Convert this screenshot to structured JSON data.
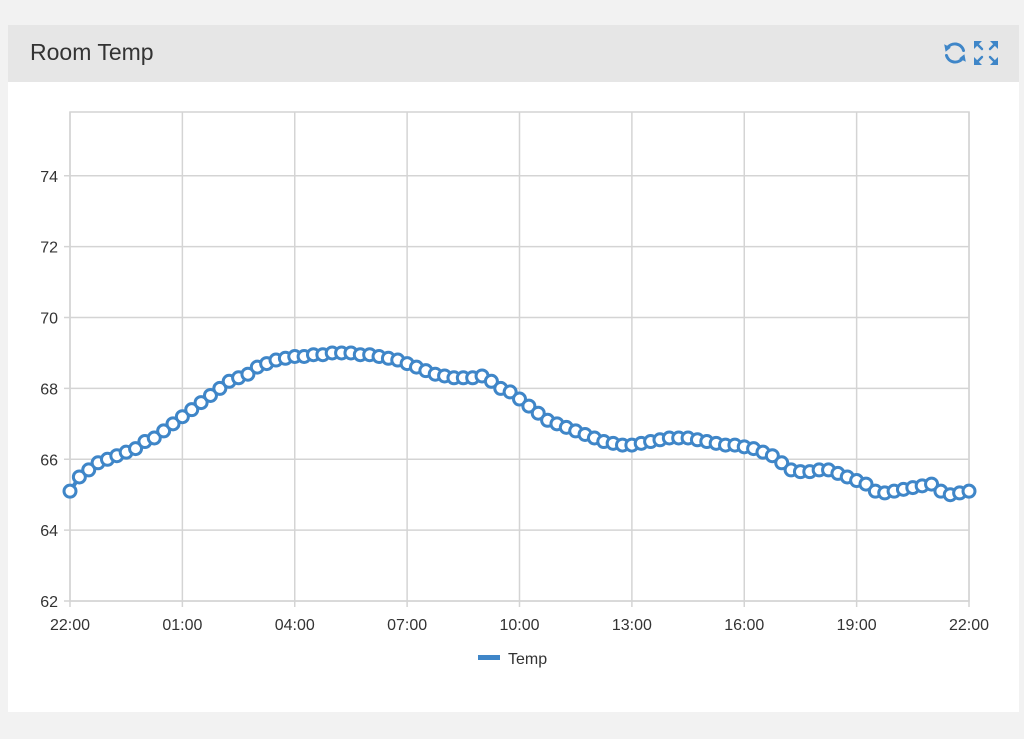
{
  "panel": {
    "title": "Room Temp",
    "icons": [
      "refresh-icon",
      "expand-icon"
    ]
  },
  "colors": {
    "series": "#3f86c8",
    "grid": "#d4d4d4",
    "header_bg": "#e6e6e6",
    "page_bg": "#f2f2f2"
  },
  "chart_data": {
    "type": "line",
    "x_ticks": [
      "22:00",
      "01:00",
      "04:00",
      "07:00",
      "10:00",
      "13:00",
      "16:00",
      "19:00",
      "22:00"
    ],
    "y_ticks": [
      62,
      64,
      66,
      68,
      70,
      72,
      74
    ],
    "ylim": [
      62,
      75.8
    ],
    "grid": true,
    "legend_position": "bottom",
    "markers": "hollow-circle",
    "series": [
      {
        "name": "Temp",
        "x_hours": [
          0,
          0.25,
          0.5,
          0.75,
          1,
          1.25,
          1.5,
          1.75,
          2,
          2.25,
          2.5,
          2.75,
          3,
          3.25,
          3.5,
          3.75,
          4,
          4.25,
          4.5,
          4.75,
          5,
          5.25,
          5.5,
          5.75,
          6,
          6.25,
          6.5,
          6.75,
          7,
          7.25,
          7.5,
          7.75,
          8,
          8.25,
          8.5,
          8.75,
          9,
          9.25,
          9.5,
          9.75,
          10,
          10.25,
          10.5,
          10.75,
          11,
          11.25,
          11.5,
          11.75,
          12,
          12.25,
          12.5,
          12.75,
          13,
          13.25,
          13.5,
          13.75,
          14,
          14.25,
          14.5,
          14.75,
          15,
          15.25,
          15.5,
          15.75,
          16,
          16.25,
          16.5,
          16.75,
          17,
          17.25,
          17.5,
          17.75,
          18,
          18.25,
          18.5,
          18.75,
          19,
          19.25,
          19.5,
          19.75,
          20,
          20.25,
          20.5,
          20.75,
          21,
          21.25,
          21.5,
          21.75,
          22,
          22.25,
          22.5,
          22.75,
          23,
          23.25,
          23.5,
          23.75,
          24
        ],
        "values": [
          65.1,
          65.5,
          65.7,
          65.9,
          66.0,
          66.1,
          66.2,
          66.3,
          66.5,
          66.6,
          66.8,
          67.0,
          67.2,
          67.4,
          67.6,
          67.8,
          68.0,
          68.2,
          68.3,
          68.4,
          68.6,
          68.7,
          68.8,
          68.85,
          68.9,
          68.9,
          68.95,
          68.95,
          69.0,
          69.0,
          69.0,
          68.95,
          68.95,
          68.9,
          68.85,
          68.8,
          68.7,
          68.6,
          68.5,
          68.4,
          68.35,
          68.3,
          68.3,
          68.3,
          68.35,
          68.2,
          68.0,
          67.9,
          67.7,
          67.5,
          67.3,
          67.1,
          67.0,
          66.9,
          66.8,
          66.7,
          66.6,
          66.5,
          66.45,
          66.4,
          66.4,
          66.45,
          66.5,
          66.55,
          66.6,
          66.6,
          66.6,
          66.55,
          66.5,
          66.45,
          66.4,
          66.4,
          66.35,
          66.3,
          66.2,
          66.1,
          65.9,
          65.7,
          65.65,
          65.65,
          65.7,
          65.7,
          65.6,
          65.5,
          65.4,
          65.3,
          65.1,
          65.05,
          65.1,
          65.15,
          65.2,
          65.25,
          65.3,
          65.1,
          65.0,
          65.05,
          65.1
        ]
      }
    ]
  }
}
